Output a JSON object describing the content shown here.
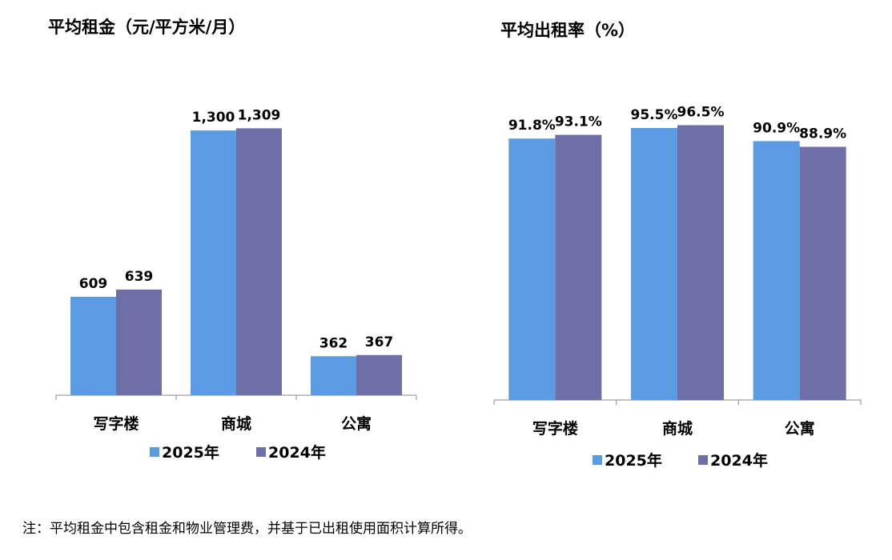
{
  "colors": {
    "2025": "#5B9BE1",
    "2024": "#6F6FA8"
  },
  "chart_data": [
    {
      "type": "bar",
      "title": "平均租金（元/平方米/月）",
      "categories": [
        "写字楼",
        "商城",
        "公寓"
      ],
      "series": [
        {
          "name": "2025年",
          "values": [
            609,
            1300,
            362
          ]
        },
        {
          "name": "2024年",
          "values": [
            639,
            1309,
            367
          ]
        }
      ],
      "labels": [
        [
          "609",
          "1,300",
          "362"
        ],
        [
          "639",
          "1,309",
          "367"
        ]
      ],
      "ylim": [
        200,
        1400
      ],
      "grid": false,
      "legend": "bottom"
    },
    {
      "type": "bar",
      "title": "平均出租率（%）",
      "categories": [
        "写字楼",
        "商城",
        "公寓"
      ],
      "series": [
        {
          "name": "2025年",
          "values": [
            91.8,
            95.5,
            90.9
          ]
        },
        {
          "name": "2024年",
          "values": [
            93.1,
            96.5,
            88.9
          ]
        }
      ],
      "labels": [
        [
          "91.8%",
          "95.5%",
          "90.9%"
        ],
        [
          "93.1%",
          "96.5%",
          "88.9%"
        ]
      ],
      "ylim": [
        0,
        100
      ],
      "grid": false,
      "legend": "bottom"
    }
  ],
  "note": "注：平均租金中包含租金和物业管理费，并基于已出租使用面积计算所得。"
}
